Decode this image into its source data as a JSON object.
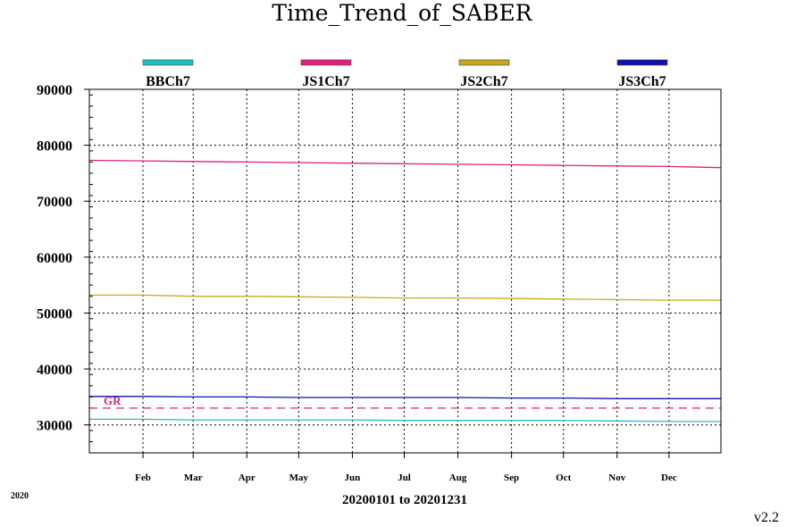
{
  "chart_data": {
    "type": "line",
    "title": "Time_Trend_of_SABER",
    "xlabel": "20200101 to 20201231",
    "year_label": "2020",
    "version": "v2.2",
    "x_range": [
      "2020-01-01",
      "2020-12-31"
    ],
    "x_ticks": [
      "Feb",
      "Mar",
      "Apr",
      "May",
      "Jun",
      "Jul",
      "Aug",
      "Sep",
      "Oct",
      "Nov",
      "Dec"
    ],
    "x_tick_dates": [
      "2020-02-01",
      "2020-03-01",
      "2020-04-01",
      "2020-05-01",
      "2020-06-01",
      "2020-07-01",
      "2020-08-01",
      "2020-09-01",
      "2020-10-01",
      "2020-11-01",
      "2020-12-01"
    ],
    "ylim": [
      25000,
      90000
    ],
    "y_ticks": [
      30000,
      40000,
      50000,
      60000,
      70000,
      80000,
      90000
    ],
    "grid": true,
    "legend_position": "top",
    "reference_line": {
      "label": "GR",
      "value": 33000,
      "color": "#e0207e"
    },
    "series": [
      {
        "name": "BBCh7",
        "color": "#20c0c0",
        "x": [
          "2020-01-01",
          "2020-02-01",
          "2020-03-01",
          "2020-04-01",
          "2020-05-01",
          "2020-06-01",
          "2020-07-01",
          "2020-08-01",
          "2020-09-01",
          "2020-10-01",
          "2020-11-01",
          "2020-12-01",
          "2020-12-31"
        ],
        "y": [
          31000,
          31000,
          30900,
          30900,
          30900,
          30900,
          30800,
          30800,
          30800,
          30800,
          30700,
          30600,
          30600
        ]
      },
      {
        "name": "JS1Ch7",
        "color": "#e0207e",
        "x": [
          "2020-01-01",
          "2020-02-01",
          "2020-03-01",
          "2020-04-01",
          "2020-05-01",
          "2020-06-01",
          "2020-07-01",
          "2020-08-01",
          "2020-09-01",
          "2020-10-01",
          "2020-11-01",
          "2020-12-01",
          "2020-12-31"
        ],
        "y": [
          77300,
          77200,
          77100,
          77000,
          76900,
          76800,
          76700,
          76600,
          76500,
          76400,
          76300,
          76200,
          76000
        ]
      },
      {
        "name": "JS2Ch7",
        "color": "#c8a81c",
        "x": [
          "2020-01-01",
          "2020-02-01",
          "2020-03-01",
          "2020-04-01",
          "2020-05-01",
          "2020-06-01",
          "2020-07-01",
          "2020-08-01",
          "2020-09-01",
          "2020-10-01",
          "2020-11-01",
          "2020-12-01",
          "2020-12-31"
        ],
        "y": [
          53200,
          53200,
          53000,
          53000,
          52900,
          52800,
          52700,
          52700,
          52600,
          52500,
          52400,
          52300,
          52300
        ]
      },
      {
        "name": "JS3Ch7",
        "color": "#1010b0",
        "x": [
          "2020-01-01",
          "2020-02-01",
          "2020-03-01",
          "2020-04-01",
          "2020-05-01",
          "2020-06-01",
          "2020-07-01",
          "2020-08-01",
          "2020-09-01",
          "2020-10-01",
          "2020-11-01",
          "2020-12-01",
          "2020-12-31"
        ],
        "y": [
          35100,
          35100,
          35000,
          35000,
          34900,
          34900,
          34900,
          34900,
          34800,
          34800,
          34700,
          34700,
          34700
        ]
      }
    ]
  }
}
